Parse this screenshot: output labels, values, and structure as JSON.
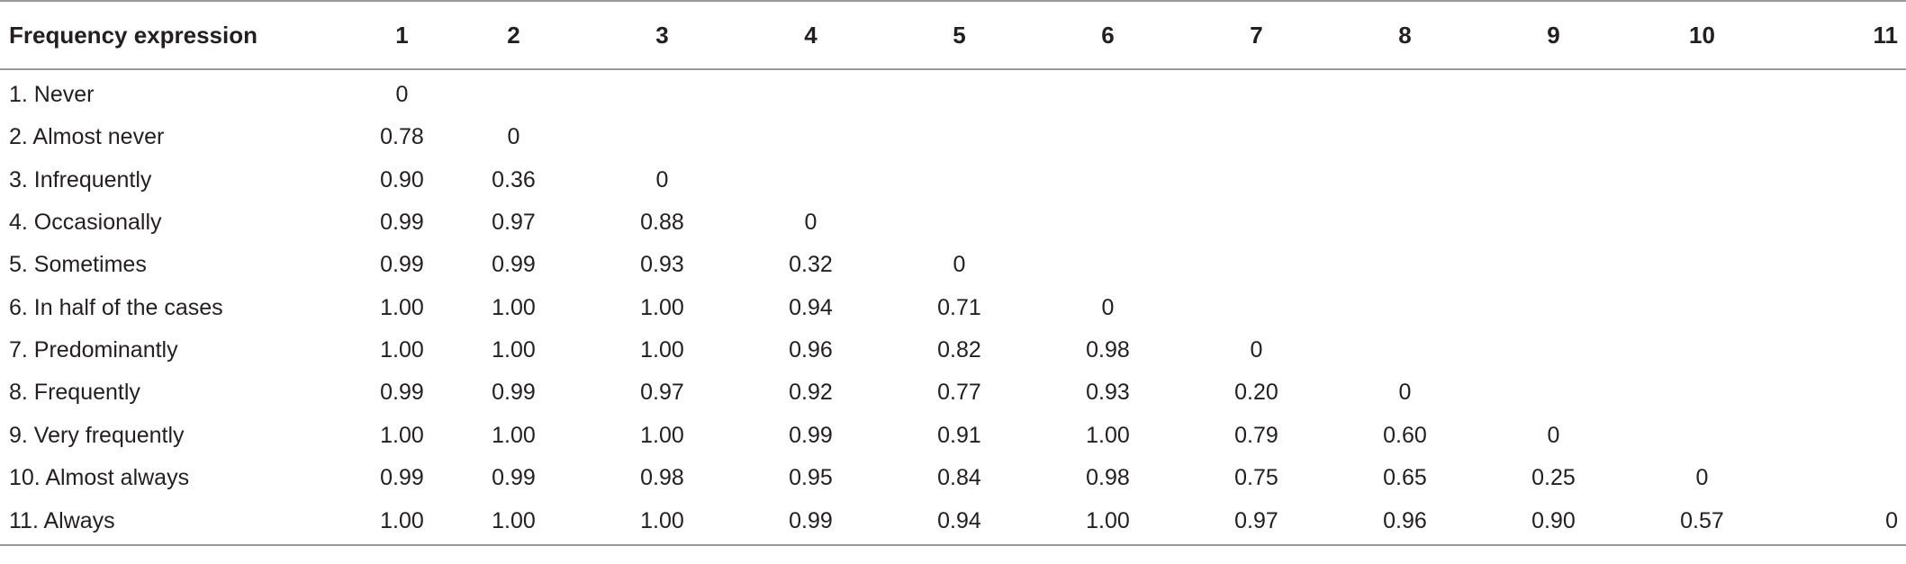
{
  "table": {
    "header": {
      "label": "Frequency expression",
      "columns": [
        "1",
        "2",
        "3",
        "4",
        "5",
        "6",
        "7",
        "8",
        "9",
        "10",
        "11"
      ]
    },
    "rows": [
      {
        "label": "1. Never",
        "cells": [
          "0",
          "",
          "",
          "",
          "",
          "",
          "",
          "",
          "",
          "",
          ""
        ]
      },
      {
        "label": "2. Almost never",
        "cells": [
          "0.78",
          "0",
          "",
          "",
          "",
          "",
          "",
          "",
          "",
          "",
          ""
        ]
      },
      {
        "label": "3. Infrequently",
        "cells": [
          "0.90",
          "0.36",
          "0",
          "",
          "",
          "",
          "",
          "",
          "",
          "",
          ""
        ]
      },
      {
        "label": "4. Occasionally",
        "cells": [
          "0.99",
          "0.97",
          "0.88",
          "0",
          "",
          "",
          "",
          "",
          "",
          "",
          ""
        ]
      },
      {
        "label": "5. Sometimes",
        "cells": [
          "0.99",
          "0.99",
          "0.93",
          "0.32",
          "0",
          "",
          "",
          "",
          "",
          "",
          ""
        ]
      },
      {
        "label": "6. In half of the cases",
        "cells": [
          "1.00",
          "1.00",
          "1.00",
          "0.94",
          "0.71",
          "0",
          "",
          "",
          "",
          "",
          ""
        ]
      },
      {
        "label": "7. Predominantly",
        "cells": [
          "1.00",
          "1.00",
          "1.00",
          "0.96",
          "0.82",
          "0.98",
          "0",
          "",
          "",
          "",
          ""
        ]
      },
      {
        "label": "8. Frequently",
        "cells": [
          "0.99",
          "0.99",
          "0.97",
          "0.92",
          "0.77",
          "0.93",
          "0.20",
          "0",
          "",
          "",
          ""
        ]
      },
      {
        "label": "9. Very frequently",
        "cells": [
          "1.00",
          "1.00",
          "1.00",
          "0.99",
          "0.91",
          "1.00",
          "0.79",
          "0.60",
          "0",
          "",
          ""
        ]
      },
      {
        "label": "10. Almost always",
        "cells": [
          "0.99",
          "0.99",
          "0.98",
          "0.95",
          "0.84",
          "0.98",
          "0.75",
          "0.65",
          "0.25",
          "0",
          ""
        ]
      },
      {
        "label": "11. Always",
        "cells": [
          "1.00",
          "1.00",
          "1.00",
          "0.99",
          "0.94",
          "1.00",
          "0.97",
          "0.96",
          "0.90",
          "0.57",
          "0"
        ]
      }
    ]
  }
}
